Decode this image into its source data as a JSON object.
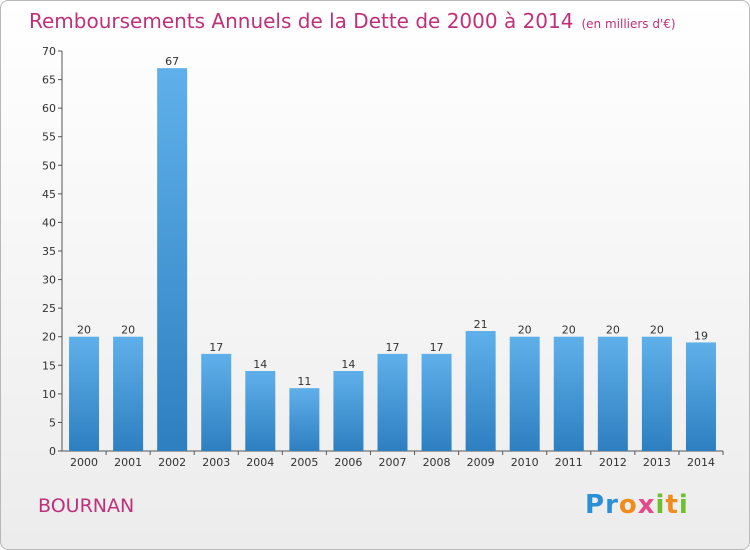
{
  "header": {
    "title": "Remboursements Annuels de la Dette de 2000 à 2014",
    "unit": "(en milliers d'€)"
  },
  "footer": {
    "place": "BOURNAN",
    "logo": "Proxiti"
  },
  "colors": {
    "bar_light": "#5fb0ea",
    "bar_dark": "#2d7fc0",
    "title": "#c0307a",
    "gridline": "#d8d8d8"
  },
  "chart_data": {
    "type": "bar",
    "categories": [
      "2000",
      "2001",
      "2002",
      "2003",
      "2004",
      "2005",
      "2006",
      "2007",
      "2008",
      "2009",
      "2010",
      "2011",
      "2012",
      "2013",
      "2014"
    ],
    "values": [
      20,
      20,
      67,
      17,
      14,
      11,
      14,
      17,
      17,
      21,
      20,
      20,
      20,
      20,
      19
    ],
    "ylim": [
      0,
      70
    ],
    "yticks": [
      0,
      5,
      10,
      15,
      20,
      25,
      30,
      35,
      40,
      45,
      50,
      55,
      60,
      65,
      70
    ],
    "grid": false,
    "legend": "none"
  }
}
